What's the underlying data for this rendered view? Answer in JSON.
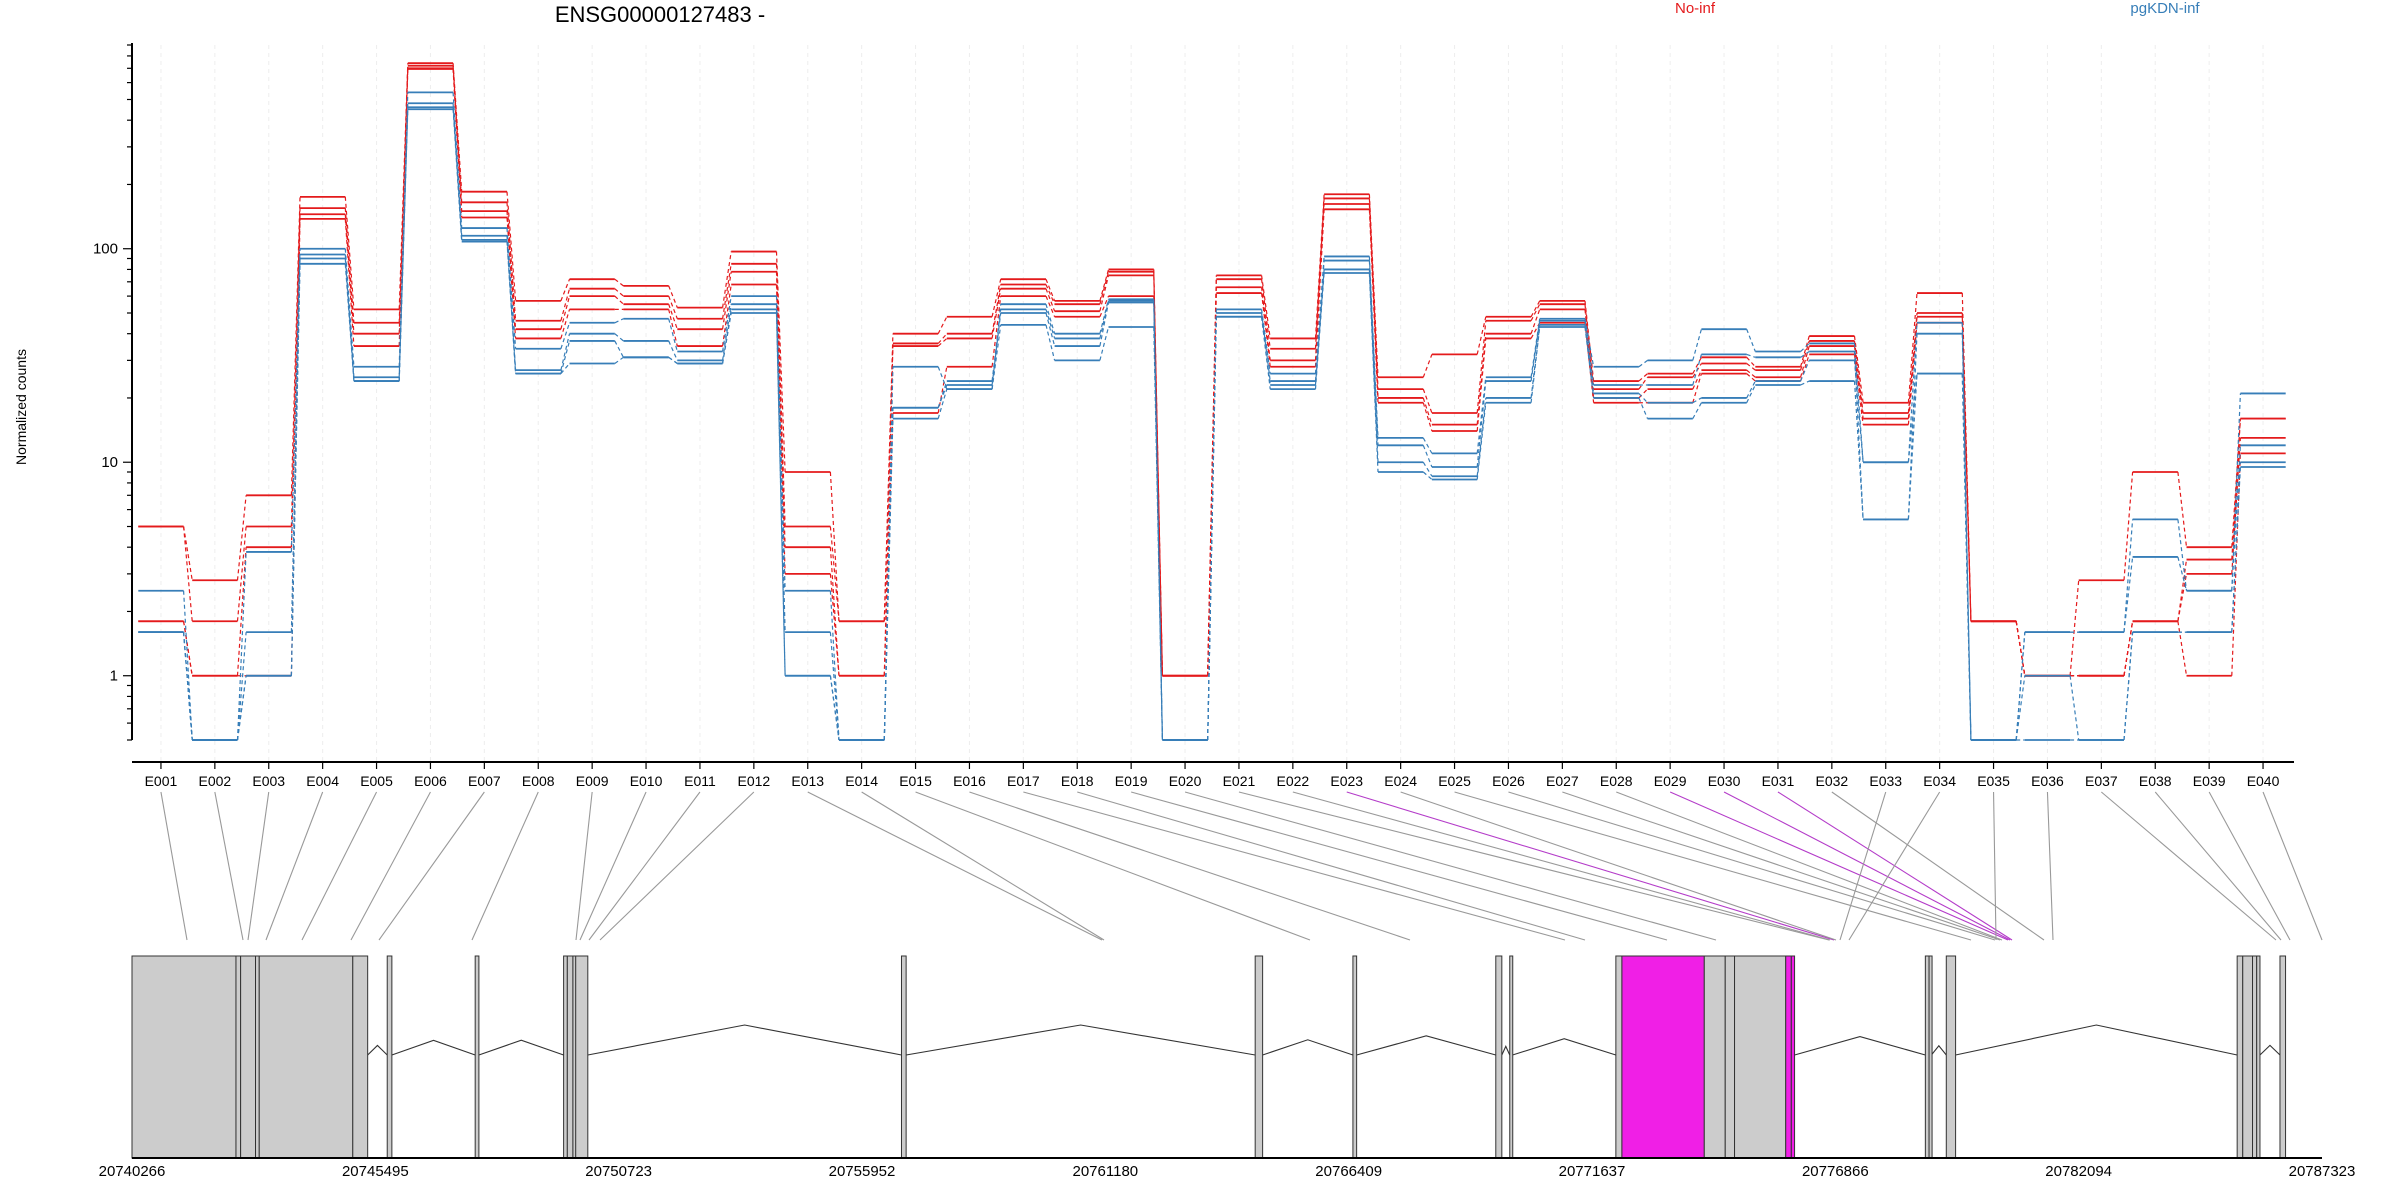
{
  "chart_data": {
    "type": "line",
    "title": "ENSG00000127483 -",
    "ylabel": "Normalized counts",
    "y_scale": "log",
    "ylim": [
      0.5,
      900
    ],
    "y_ticks": [
      {
        "value": 1,
        "label": "1"
      },
      {
        "value": 10,
        "label": "10"
      },
      {
        "value": 100,
        "label": "100"
      }
    ],
    "categories": [
      "E001",
      "E002",
      "E003",
      "E004",
      "E005",
      "E006",
      "E007",
      "E008",
      "E009",
      "E010",
      "E011",
      "E012",
      "E013",
      "E014",
      "E015",
      "E016",
      "E017",
      "E018",
      "E019",
      "E020",
      "E021",
      "E022",
      "E023",
      "E024",
      "E025",
      "E026",
      "E027",
      "E028",
      "E029",
      "E030",
      "E031",
      "E032",
      "E033",
      "E034",
      "E035",
      "E036",
      "E037",
      "E038",
      "E039",
      "E040"
    ],
    "legend": [
      {
        "name": "No-inf",
        "color": "#e41a1c"
      },
      {
        "name": "pgKDN-inf",
        "color": "#377eb8"
      }
    ],
    "series": [
      {
        "group": "No-inf",
        "color": "#e41a1c",
        "values": [
          5,
          2.8,
          7,
          175,
          52,
          740,
          185,
          57,
          72,
          67,
          53,
          97,
          9,
          1.8,
          40,
          48,
          72,
          57,
          80,
          1,
          75,
          38,
          180,
          25,
          32,
          48,
          57,
          24,
          26,
          31,
          28,
          39,
          19,
          62,
          1.8,
          1,
          2.8,
          9,
          4,
          16
        ]
      },
      {
        "group": "No-inf",
        "color": "#e41a1c",
        "values": [
          5,
          1.8,
          5,
          155,
          45,
          720,
          165,
          46,
          65,
          60,
          47,
          85,
          5,
          1.8,
          36,
          40,
          68,
          55,
          78,
          1,
          72,
          34,
          172,
          22,
          17,
          46,
          55,
          22,
          25,
          29,
          27,
          37,
          17,
          50,
          1.8,
          1,
          1,
          1.8,
          3.5,
          16
        ]
      },
      {
        "group": "No-inf",
        "color": "#e41a1c",
        "values": [
          1.8,
          1,
          4,
          145,
          40,
          700,
          150,
          42,
          60,
          55,
          42,
          78,
          4,
          1,
          35,
          38,
          65,
          51,
          75,
          1,
          66,
          30,
          162,
          20,
          15,
          40,
          52,
          20,
          22,
          27,
          25,
          35,
          16,
          48,
          1.8,
          1,
          1,
          1.8,
          3,
          13
        ]
      },
      {
        "group": "No-inf",
        "color": "#e41a1c",
        "values": [
          1.8,
          1,
          1,
          138,
          35,
          695,
          140,
          38,
          52,
          52,
          35,
          68,
          3,
          1,
          17,
          28,
          60,
          48,
          60,
          1,
          62,
          28,
          153,
          19,
          14,
          38,
          45,
          19,
          19,
          26,
          24,
          32,
          15,
          45,
          1.8,
          1,
          1,
          1.8,
          1,
          11
        ]
      },
      {
        "group": "pgKDN-inf",
        "color": "#377eb8",
        "values": [
          2.5,
          0.5,
          3.8,
          100,
          28,
          540,
          125,
          34,
          45,
          47,
          33,
          60,
          2.5,
          0.5,
          28,
          22,
          55,
          40,
          58,
          0.5,
          52,
          26,
          92,
          13,
          11,
          25,
          47,
          28,
          30,
          42,
          33,
          36,
          10,
          45,
          0.5,
          1.6,
          1.6,
          5.4,
          2.5,
          21
        ]
      },
      {
        "group": "pgKDN-inf",
        "color": "#377eb8",
        "values": [
          1.6,
          0.5,
          1.6,
          94,
          25,
          460,
          115,
          27,
          40,
          37,
          30,
          55,
          1.6,
          0.5,
          18,
          24,
          52,
          38,
          57,
          0.5,
          50,
          24,
          88,
          12,
          9.5,
          24,
          46,
          23,
          23,
          32,
          31,
          33,
          5.4,
          40,
          0.5,
          1.6,
          1.6,
          3.6,
          2.5,
          12
        ]
      },
      {
        "group": "pgKDN-inf",
        "color": "#377eb8",
        "values": [
          1.6,
          0.5,
          1,
          90,
          24,
          480,
          110,
          26,
          37,
          31,
          29,
          52,
          1,
          0.5,
          18,
          23,
          50,
          35,
          56,
          0.5,
          48,
          23,
          80,
          10,
          8.6,
          20,
          44,
          21,
          19,
          20,
          24,
          30,
          10,
          26,
          0.5,
          1,
          0.5,
          1.6,
          1.6,
          10
        ]
      },
      {
        "group": "pgKDN-inf",
        "color": "#377eb8",
        "values": [
          1.6,
          0.5,
          1,
          85,
          24,
          450,
          108,
          26,
          29,
          31,
          29,
          50,
          1,
          0.5,
          16,
          22,
          44,
          30,
          43,
          0.5,
          48,
          22,
          77,
          9,
          8.3,
          19,
          43,
          20,
          16,
          19,
          23,
          24,
          5.4,
          26,
          0.5,
          0.5,
          0.5,
          1.6,
          1.6,
          9.5
        ]
      }
    ],
    "gene_model": {
      "coord_labels": [
        "20740266",
        "20745495",
        "20750723",
        "20755952",
        "20761180",
        "20766409",
        "20771637",
        "20776866",
        "20782094",
        "20787323"
      ],
      "highlight_color": "#f01fe6",
      "highlighted_exons": [
        "E029",
        "E030",
        "E031"
      ]
    }
  }
}
